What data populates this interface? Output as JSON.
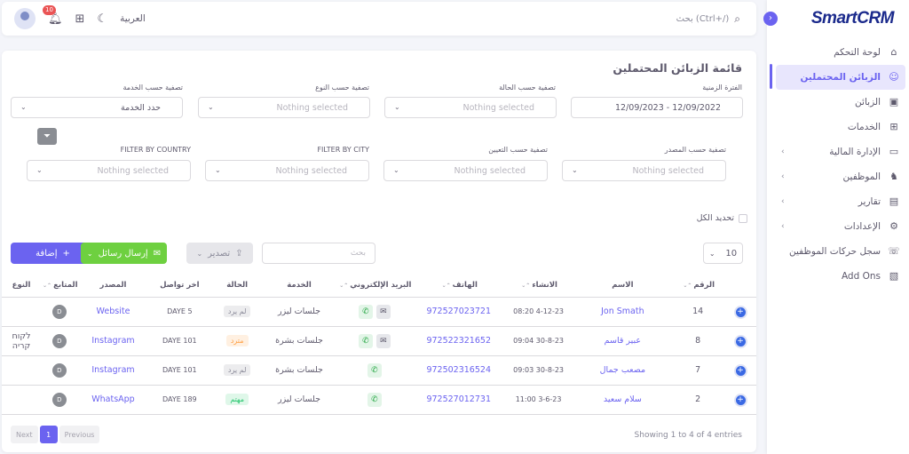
{
  "brand": {
    "logo": "SmartCRM"
  },
  "sidebar": {
    "items": [
      {
        "label": "لوحة التحكم",
        "icon": "home-icon",
        "glyph": "⌂",
        "active": false,
        "chevron": false
      },
      {
        "label": "الزبائن المحتملين",
        "icon": "user-circle-icon",
        "glyph": "☺",
        "active": true,
        "chevron": false
      },
      {
        "label": "الزبائن",
        "icon": "id-card-icon",
        "glyph": "▣",
        "active": false,
        "chevron": false
      },
      {
        "label": "الخدمات",
        "icon": "gift-icon",
        "glyph": "⊞",
        "active": false,
        "chevron": false
      },
      {
        "label": "الإدارة المالية",
        "icon": "wallet-icon",
        "glyph": "▭",
        "active": false,
        "chevron": true
      },
      {
        "label": "الموظفين",
        "icon": "users-icon",
        "glyph": "♞",
        "active": false,
        "chevron": true
      },
      {
        "label": "تقارير",
        "icon": "report-icon",
        "glyph": "▤",
        "active": false,
        "chevron": true
      },
      {
        "label": "الإعدادات",
        "icon": "gear-icon",
        "glyph": "⚙",
        "active": false,
        "chevron": true
      },
      {
        "label": "سجل حركات الموظفين",
        "icon": "user-voice-icon",
        "glyph": "☏",
        "active": false,
        "chevron": false
      },
      {
        "label": "Add Ons",
        "icon": "layers-icon",
        "glyph": "▧",
        "active": false,
        "chevron": false
      }
    ]
  },
  "topbar": {
    "search_placeholder": "بحث (Ctrl+/)",
    "language": "العربية",
    "notifications_count": "10"
  },
  "page": {
    "title": "قائمة الزبائن المحتملين"
  },
  "filters": {
    "row1": [
      {
        "label": "الفترة الزمنية",
        "value": "12/09/2023 - 12/09/2022",
        "placeholder": false
      },
      {
        "label": "تصفية حسب الحالة",
        "value": "Nothing selected",
        "placeholder": true
      },
      {
        "label": "تصفية حسب النوع",
        "value": "Nothing selected",
        "placeholder": true
      },
      {
        "label": "تصفية حسب الخدمة",
        "value": "حدد الخدمة",
        "placeholder": false
      }
    ],
    "row2": [
      {
        "label": "تصفية حسب المصدر",
        "value": "Nothing selected"
      },
      {
        "label": "تصفية حسب التعيين",
        "value": "Nothing selected"
      },
      {
        "label": "FILTER BY CITY",
        "value": "Nothing selected"
      },
      {
        "label": "FILTER BY COUNTRY",
        "value": "Nothing selected"
      }
    ]
  },
  "toolbar": {
    "select_all": "تحديد الكل",
    "add_label": "إضافة",
    "send_label": "إرسال رسائل",
    "export_label": "تصدير",
    "search_placeholder": "بحث",
    "per_page": "10"
  },
  "table": {
    "headers": [
      "",
      "الرقم",
      "الاسم",
      "الانشاء",
      "الهاتف",
      "البريد الإلكتروني",
      "الخدمة",
      "الحالة",
      "اخر تواصل",
      "المصدر",
      "المتابع",
      "النوع"
    ],
    "rows": [
      {
        "num": "14",
        "name": "Jon Smath",
        "created": "4-12-23 08:20",
        "phone": "972527023721",
        "mail": true,
        "service": "جلسات ليزر",
        "status": "لم يرد",
        "status_type": "gray",
        "last": "DAYE 5",
        "source": "Website",
        "owner": "D",
        "type": ""
      },
      {
        "num": "8",
        "name": "عبير قاسم",
        "created": "30-8-23 09:04",
        "phone": "972522321652",
        "mail": true,
        "service": "جلسات بشرة",
        "status": "مترد",
        "status_type": "orange",
        "last": "DAYE 101",
        "source": "Instagram",
        "owner": "D",
        "type": "לקוח קריה"
      },
      {
        "num": "7",
        "name": "مصعب جمال",
        "created": "30-8-23 09:03",
        "phone": "972502316524",
        "mail": false,
        "service": "جلسات بشرة",
        "status": "لم يرد",
        "status_type": "gray",
        "last": "DAYE 101",
        "source": "Instagram",
        "owner": "D",
        "type": ""
      },
      {
        "num": "2",
        "name": "سلام سعيد",
        "created": "3-6-23 11:00",
        "phone": "972527012731",
        "mail": false,
        "service": "جلسات ليزر",
        "status": "مهتم",
        "status_type": "green",
        "last": "DAYE 189",
        "source": "WhatsApp",
        "owner": "D",
        "type": ""
      }
    ]
  },
  "footer": {
    "info": "Showing 1 to 4 of 4 entries",
    "next": "Next",
    "current_page": "1",
    "previous": "Previous"
  }
}
